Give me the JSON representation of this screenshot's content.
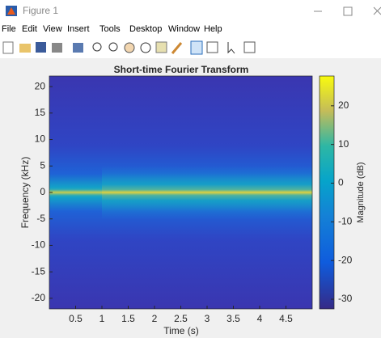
{
  "window": {
    "title": "Figure 1",
    "menu": [
      "File",
      "Edit",
      "View",
      "Insert",
      "Tools",
      "Desktop",
      "Window",
      "Help"
    ]
  },
  "chart_data": {
    "type": "spectrogram",
    "title": "Short-time Fourier Transform",
    "x_label": "Time (s)",
    "y_label": "Frequency (kHz)",
    "xlim": [
      0,
      5
    ],
    "xticks": [
      0.5,
      1,
      1.5,
      2,
      2.5,
      3,
      3.5,
      4,
      4.5
    ],
    "ylim": [
      -22,
      22
    ],
    "yticks": [
      -20,
      -15,
      -10,
      -5,
      0,
      5,
      10,
      15,
      20
    ],
    "colorbar": {
      "label": "Magnitude (dB)",
      "lim": [
        -32.5,
        27.7
      ],
      "ticks": [
        -30,
        -20,
        -10,
        0,
        10,
        20
      ]
    }
  }
}
